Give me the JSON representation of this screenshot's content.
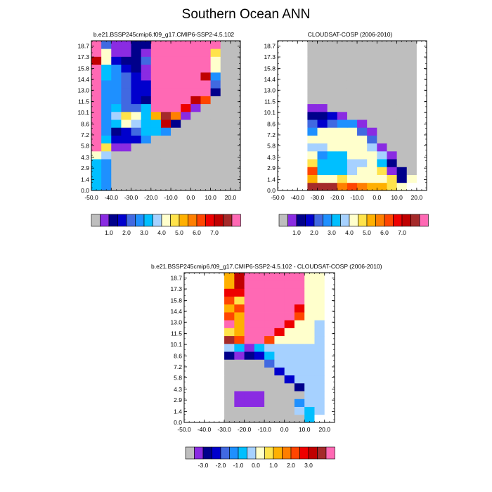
{
  "title": "Southern Ocean ANN",
  "palette": {
    "gray": "#bebebe",
    "violet": "#8a2be2",
    "dark_navy": "#00008b",
    "navy": "#0000cd",
    "royal_blue": "#4169e1",
    "blue": "#1e90ff",
    "deep_sky": "#00bfff",
    "light_blue": "#a6d1ff",
    "cream": "#ffffcc",
    "yellow": "#ffe34b",
    "gold": "#ffb000",
    "orange": "#ff7f00",
    "red_orange": "#ff4500",
    "red": "#ee0000",
    "dark_red": "#c00000",
    "brown_red": "#a52a2a",
    "pink": "#ff69b4"
  },
  "colorbars": {
    "abs": {
      "colors": [
        "#bebebe",
        "#8a2be2",
        "#00008b",
        "#0000cd",
        "#4169e1",
        "#1e90ff",
        "#00bfff",
        "#a6d1ff",
        "#ffffcc",
        "#ffe34b",
        "#ffb000",
        "#ff7f00",
        "#ff4500",
        "#ee0000",
        "#c00000",
        "#a52a2a",
        "#ff69b4"
      ],
      "labels": [
        {
          "i": 2,
          "t": "1.0"
        },
        {
          "i": 4,
          "t": "2.0"
        },
        {
          "i": 6,
          "t": "3.0"
        },
        {
          "i": 8,
          "t": "4.0"
        },
        {
          "i": 10,
          "t": "5.0"
        },
        {
          "i": 12,
          "t": "6.0"
        },
        {
          "i": 14,
          "t": "7.0"
        }
      ]
    },
    "diff": {
      "colors": [
        "#bebebe",
        "#8a2be2",
        "#00008b",
        "#0000cd",
        "#4169e1",
        "#1e90ff",
        "#00bfff",
        "#a6d1ff",
        "#ffffcc",
        "#ffe34b",
        "#ffb000",
        "#ff7f00",
        "#ff4500",
        "#ee0000",
        "#c00000",
        "#a52a2a",
        "#ff69b4"
      ],
      "labels": [
        {
          "i": 2,
          "t": "-3.0"
        },
        {
          "i": 4,
          "t": "-2.0"
        },
        {
          "i": 6,
          "t": "-1.0"
        },
        {
          "i": 8,
          "t": "0.0"
        },
        {
          "i": 10,
          "t": "1.0"
        },
        {
          "i": 12,
          "t": "2.0"
        },
        {
          "i": 14,
          "t": "3.0"
        }
      ]
    }
  },
  "chart_data": [
    {
      "type": "heatmap",
      "title": "b.e21.BSSP245cmip6.f09_g17.CMIP6-SSP2-4.5.102",
      "x_ticks": [
        "-50.0",
        "-40.0",
        "-30.0",
        "-20.0",
        "-10.0",
        "0.0",
        "10.0",
        "20.0"
      ],
      "y_ticks": [
        "0.0",
        "1.4",
        "2.9",
        "4.3",
        "5.8",
        "7.2",
        "8.6",
        "10.1",
        "11.5",
        "13.0",
        "14.4",
        "15.8",
        "17.3",
        "18.7"
      ],
      "x_range": [
        -50,
        25
      ],
      "y_range": [
        0,
        19.4
      ],
      "grid": false,
      "background_color": "#bebebe",
      "note": "Cell colors index into the 17-color abs colorbar (0 = gray ... 16 = pink); rows from y=0 upward, columns as x_range split into 15 bins.",
      "columns": 15,
      "cells": [
        [
          6,
          5,
          0,
          0,
          0,
          0,
          0,
          0,
          0,
          0,
          0,
          0,
          0,
          0,
          0
        ],
        [
          6,
          5,
          0,
          0,
          0,
          0,
          0,
          0,
          0,
          0,
          0,
          0,
          0,
          0,
          0
        ],
        [
          6,
          5,
          0,
          0,
          0,
          0,
          0,
          0,
          0,
          0,
          0,
          0,
          0,
          0,
          0
        ],
        [
          6,
          5,
          0,
          0,
          0,
          0,
          0,
          0,
          0,
          0,
          0,
          0,
          0,
          0,
          0
        ],
        [
          8,
          7,
          0,
          0,
          0,
          0,
          0,
          0,
          0,
          0,
          0,
          0,
          0,
          0,
          0
        ],
        [
          16,
          9,
          1,
          1,
          0,
          0,
          0,
          0,
          0,
          0,
          0,
          0,
          0,
          0,
          0
        ],
        [
          16,
          6,
          3,
          3,
          3,
          5,
          0,
          0,
          0,
          0,
          0,
          0,
          0,
          0,
          0
        ],
        [
          16,
          5,
          2,
          3,
          4,
          6,
          6,
          5,
          0,
          0,
          0,
          0,
          0,
          0,
          0
        ],
        [
          16,
          5,
          6,
          8,
          7,
          6,
          6,
          14,
          2,
          0,
          0,
          0,
          0,
          0,
          0
        ],
        [
          16,
          5,
          7,
          9,
          8,
          6,
          10,
          15,
          11,
          1,
          0,
          0,
          0,
          0,
          0
        ],
        [
          16,
          5,
          6,
          4,
          4,
          6,
          16,
          16,
          16,
          13,
          1,
          0,
          0,
          0,
          0
        ],
        [
          16,
          5,
          5,
          4,
          3,
          2,
          16,
          16,
          16,
          16,
          14,
          12,
          0,
          0,
          0
        ],
        [
          16,
          5,
          5,
          4,
          3,
          3,
          16,
          16,
          16,
          16,
          16,
          16,
          2,
          0,
          0
        ],
        [
          16,
          5,
          5,
          4,
          3,
          3,
          16,
          16,
          16,
          16,
          16,
          16,
          4,
          0,
          0
        ],
        [
          16,
          6,
          5,
          4,
          3,
          1,
          16,
          16,
          16,
          16,
          16,
          14,
          5,
          0,
          0
        ],
        [
          16,
          6,
          5,
          3,
          2,
          1,
          16,
          16,
          16,
          16,
          16,
          16,
          8,
          0,
          0
        ],
        [
          14,
          8,
          3,
          2,
          2,
          4,
          16,
          16,
          16,
          16,
          16,
          16,
          8,
          0,
          0
        ],
        [
          16,
          8,
          1,
          1,
          2,
          1,
          16,
          16,
          16,
          16,
          16,
          16,
          9,
          0,
          0
        ],
        [
          16,
          4,
          1,
          1,
          2,
          2,
          16,
          16,
          16,
          16,
          16,
          16,
          16,
          0,
          0
        ]
      ]
    },
    {
      "type": "heatmap",
      "title": "CLOUDSAT-COSP (2006-2010)",
      "x_ticks": [
        "-50.0",
        "-40.0",
        "-30.0",
        "-20.0",
        "-10.0",
        "0.0",
        "10.0",
        "20.0"
      ],
      "y_ticks": [
        "0.0",
        "1.4",
        "2.9",
        "4.3",
        "5.8",
        "7.2",
        "8.6",
        "10.1",
        "11.5",
        "13.0",
        "14.4",
        "15.8",
        "17.3",
        "18.7"
      ],
      "x_range": [
        -50,
        25
      ],
      "y_range": [
        0,
        19.4
      ],
      "grid": false,
      "background_color": "#bebebe",
      "note": "Cell colors index into the 17-color abs colorbar; -1 = white (no data).",
      "columns": 15,
      "cells": [
        [
          -1,
          -1,
          -1,
          15,
          15,
          15,
          11,
          12,
          11,
          10,
          10,
          9,
          8,
          -1,
          -1
        ],
        [
          -1,
          -1,
          -1,
          10,
          8,
          8,
          9,
          8,
          8,
          8,
          8,
          9,
          2,
          8,
          -1
        ],
        [
          -1,
          -1,
          -1,
          12,
          6,
          6,
          6,
          7,
          8,
          8,
          9,
          1,
          2,
          0,
          -1
        ],
        [
          -1,
          -1,
          -1,
          9,
          6,
          6,
          6,
          7,
          7,
          8,
          6,
          2,
          0,
          0,
          -1
        ],
        [
          -1,
          -1,
          -1,
          8,
          5,
          6,
          6,
          8,
          8,
          8,
          7,
          1,
          0,
          0,
          -1
        ],
        [
          -1,
          -1,
          -1,
          7,
          7,
          8,
          8,
          8,
          8,
          7,
          1,
          0,
          0,
          0,
          -1
        ],
        [
          -1,
          -1,
          -1,
          8,
          8,
          8,
          8,
          8,
          8,
          4,
          0,
          0,
          0,
          0,
          -1
        ],
        [
          -1,
          -1,
          -1,
          5,
          8,
          8,
          8,
          8,
          4,
          1,
          0,
          0,
          0,
          0,
          -1
        ],
        [
          -1,
          -1,
          -1,
          4,
          3,
          4,
          5,
          5,
          1,
          0,
          0,
          0,
          0,
          0,
          -1
        ],
        [
          -1,
          -1,
          -1,
          2,
          2,
          3,
          1,
          0,
          0,
          0,
          0,
          0,
          0,
          0,
          -1
        ],
        [
          -1,
          -1,
          -1,
          1,
          1,
          0,
          0,
          0,
          0,
          0,
          0,
          0,
          0,
          0,
          -1
        ],
        [
          -1,
          -1,
          -1,
          0,
          0,
          0,
          0,
          0,
          0,
          0,
          0,
          0,
          0,
          0,
          -1
        ],
        [
          -1,
          -1,
          -1,
          0,
          0,
          0,
          0,
          0,
          0,
          0,
          0,
          0,
          0,
          0,
          -1
        ],
        [
          -1,
          -1,
          -1,
          0,
          0,
          0,
          0,
          0,
          0,
          0,
          0,
          0,
          0,
          0,
          -1
        ],
        [
          -1,
          -1,
          -1,
          0,
          0,
          0,
          0,
          0,
          0,
          0,
          0,
          0,
          0,
          0,
          -1
        ],
        [
          -1,
          -1,
          -1,
          0,
          0,
          0,
          0,
          0,
          0,
          0,
          0,
          0,
          0,
          0,
          -1
        ],
        [
          -1,
          -1,
          -1,
          0,
          0,
          0,
          0,
          0,
          0,
          0,
          0,
          0,
          0,
          0,
          -1
        ],
        [
          -1,
          -1,
          -1,
          0,
          0,
          0,
          0,
          0,
          0,
          0,
          0,
          0,
          0,
          0,
          -1
        ],
        [
          -1,
          -1,
          -1,
          0,
          0,
          0,
          0,
          0,
          0,
          0,
          0,
          0,
          0,
          0,
          -1
        ]
      ]
    },
    {
      "type": "heatmap",
      "title": "b.e21.BSSP245cmip6.f09_g17.CMIP6-SSP2-4.5.102 - CLOUDSAT-COSP (2006-2010)",
      "x_ticks": [
        "-50.0",
        "-40.0",
        "-30.0",
        "-20.0",
        "-10.0",
        "0.0",
        "10.0",
        "20.0"
      ],
      "y_ticks": [
        "0.0",
        "1.4",
        "2.9",
        "4.3",
        "5.8",
        "7.2",
        "8.6",
        "10.1",
        "11.5",
        "13.0",
        "14.4",
        "15.8",
        "17.3",
        "18.7"
      ],
      "x_range": [
        -50,
        25
      ],
      "y_range": [
        0,
        19.4
      ],
      "grid": false,
      "background_color": "#ffffff",
      "note": "Cell colors index into the 17-color diff colorbar; -1 = white (no data).",
      "columns": 15,
      "cells": [
        [
          -1,
          -1,
          -1,
          -1,
          0,
          0,
          0,
          0,
          0,
          0,
          0,
          0,
          6,
          -1,
          -1
        ],
        [
          -1,
          -1,
          -1,
          -1,
          0,
          0,
          0,
          0,
          0,
          0,
          0,
          7,
          6,
          7,
          -1
        ],
        [
          -1,
          -1,
          -1,
          -1,
          0,
          1,
          1,
          1,
          0,
          0,
          0,
          5,
          7,
          7,
          -1
        ],
        [
          -1,
          -1,
          -1,
          -1,
          0,
          1,
          1,
          1,
          0,
          0,
          0,
          0,
          7,
          7,
          -1
        ],
        [
          -1,
          -1,
          -1,
          -1,
          0,
          0,
          0,
          0,
          0,
          0,
          0,
          2,
          7,
          7,
          -1
        ],
        [
          -1,
          -1,
          -1,
          -1,
          0,
          0,
          0,
          0,
          0,
          0,
          3,
          7,
          7,
          7,
          -1
        ],
        [
          -1,
          -1,
          -1,
          -1,
          0,
          0,
          0,
          0,
          0,
          3,
          7,
          7,
          7,
          7,
          -1
        ],
        [
          -1,
          -1,
          -1,
          -1,
          0,
          0,
          0,
          0,
          4,
          7,
          7,
          7,
          7,
          7,
          -1
        ],
        [
          -1,
          -1,
          -1,
          -1,
          2,
          1,
          2,
          3,
          6,
          7,
          7,
          7,
          7,
          7,
          -1
        ],
        [
          -1,
          -1,
          -1,
          -1,
          7,
          6,
          1,
          6,
          7,
          7,
          7,
          7,
          7,
          7,
          -1
        ],
        [
          -1,
          -1,
          -1,
          -1,
          15,
          12,
          16,
          16,
          12,
          8,
          8,
          8,
          8,
          7,
          -1
        ],
        [
          -1,
          -1,
          -1,
          -1,
          9,
          10,
          16,
          16,
          16,
          13,
          8,
          8,
          8,
          7,
          -1
        ],
        [
          -1,
          -1,
          -1,
          -1,
          16,
          10,
          16,
          16,
          16,
          16,
          13,
          8,
          8,
          7,
          -1
        ],
        [
          -1,
          -1,
          -1,
          -1,
          12,
          10,
          16,
          16,
          16,
          16,
          16,
          12,
          8,
          8,
          -1
        ],
        [
          -1,
          -1,
          -1,
          -1,
          10,
          12,
          16,
          16,
          16,
          16,
          16,
          13,
          8,
          8,
          -1
        ],
        [
          -1,
          -1,
          -1,
          -1,
          12,
          9,
          16,
          16,
          16,
          16,
          16,
          16,
          8,
          8,
          -1
        ],
        [
          -1,
          -1,
          -1,
          -1,
          13,
          13,
          16,
          16,
          16,
          16,
          16,
          16,
          8,
          8,
          -1
        ],
        [
          -1,
          -1,
          -1,
          -1,
          10,
          14,
          16,
          16,
          16,
          16,
          16,
          16,
          8,
          8,
          -1
        ],
        [
          -1,
          -1,
          -1,
          -1,
          10,
          14,
          16,
          16,
          16,
          16,
          16,
          16,
          8,
          8,
          -1
        ]
      ]
    }
  ]
}
